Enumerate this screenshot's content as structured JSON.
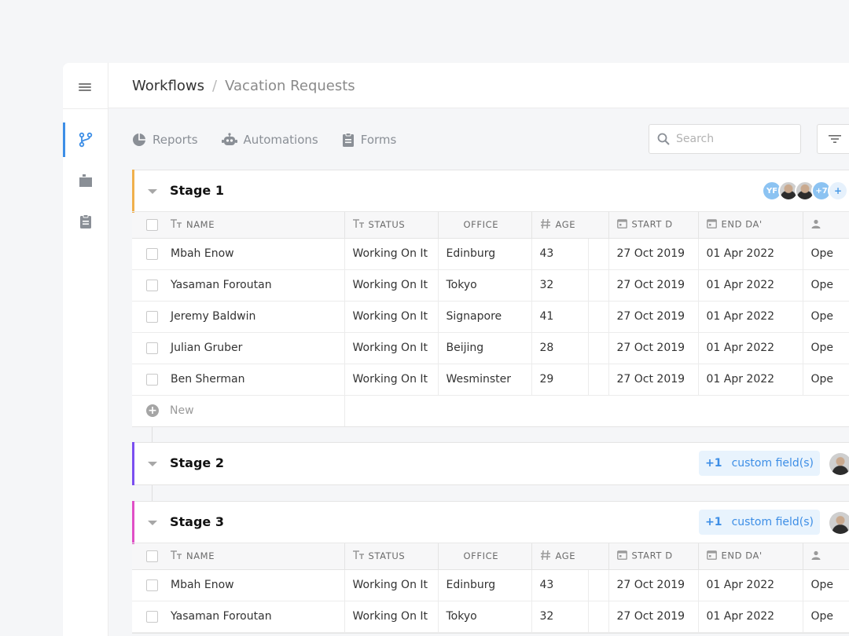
{
  "breadcrumb": {
    "root": "Workflows",
    "separator": "/",
    "current": "Vacation Requests"
  },
  "toolbar": {
    "reports": "Reports",
    "automations": "Automations",
    "forms": "Forms",
    "search_placeholder": "Search"
  },
  "columns": [
    "NAME",
    "STATUS",
    "OFFICE",
    "AGE",
    "START D",
    "END DA'"
  ],
  "stage1": {
    "title": "Stage 1",
    "accent": "#f0b04c",
    "avatars": {
      "initials": "YF",
      "more": "+7",
      "add": "+"
    },
    "rows": [
      {
        "name": "Mbah Enow",
        "status": "Working On It",
        "office": "Edinburg",
        "age": "43",
        "start": "27 Oct 2019",
        "end": "01 Apr 2022",
        "extra": "Ope"
      },
      {
        "name": "Yasaman Foroutan",
        "status": "Working On It",
        "office": "Tokyo",
        "age": "32",
        "start": "27 Oct 2019",
        "end": "01 Apr 2022",
        "extra": "Ope"
      },
      {
        "name": "Jeremy Baldwin",
        "status": "Working On It",
        "office": "Signapore",
        "age": "41",
        "start": "27 Oct 2019",
        "end": "01 Apr 2022",
        "extra": "Ope"
      },
      {
        "name": "Julian Gruber",
        "status": "Working On It",
        "office": "Beijing",
        "age": "28",
        "start": "27 Oct 2019",
        "end": "01 Apr 2022",
        "extra": "Ope"
      },
      {
        "name": "Ben Sherman",
        "status": "Working On It",
        "office": "Wesminster",
        "age": "29",
        "start": "27 Oct 2019",
        "end": "01 Apr 2022",
        "extra": "Ope"
      }
    ],
    "new_label": "New"
  },
  "stage2": {
    "title": "Stage 2",
    "accent": "#7b4ff0",
    "custom_count": "+1",
    "custom_label": "custom field(s)"
  },
  "stage3": {
    "title": "Stage 3",
    "accent": "#e04fc6",
    "custom_count": "+1",
    "custom_label": "custom field(s)",
    "rows": [
      {
        "name": "Mbah Enow",
        "status": "Working On It",
        "office": "Edinburg",
        "age": "43",
        "start": "27 Oct 2019",
        "end": "01 Apr 2022",
        "extra": "Ope"
      },
      {
        "name": "Yasaman Foroutan",
        "status": "Working On It",
        "office": "Tokyo",
        "age": "32",
        "start": "27 Oct 2019",
        "end": "01 Apr 2022",
        "extra": "Ope"
      }
    ]
  },
  "icons": {
    "rail": [
      "menu-icon",
      "workflow-icon",
      "folder-icon",
      "clipboard-icon"
    ],
    "toolbar": [
      "pie-chart-icon",
      "robot-icon",
      "clipboard-icon",
      "search-icon",
      "filter-icon"
    ]
  }
}
